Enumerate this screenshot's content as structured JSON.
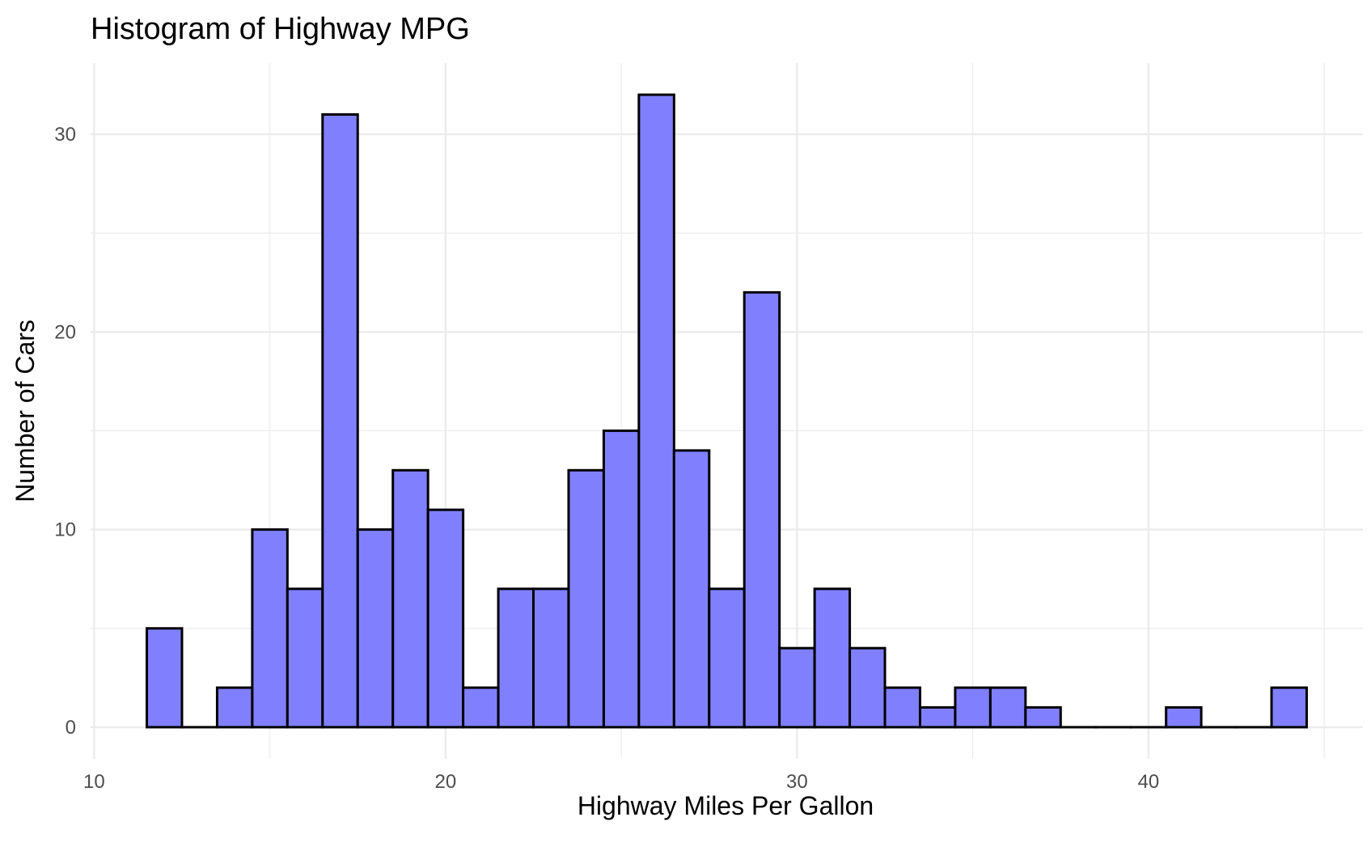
{
  "chart_data": {
    "type": "bar",
    "title": "Histogram of Highway MPG",
    "xlabel": "Highway Miles Per Gallon",
    "ylabel": "Number of Cars",
    "bin_width": 1,
    "bins": [
      {
        "center": 12,
        "count": 5
      },
      {
        "center": 13,
        "count": 0
      },
      {
        "center": 14,
        "count": 2
      },
      {
        "center": 15,
        "count": 10
      },
      {
        "center": 16,
        "count": 7
      },
      {
        "center": 17,
        "count": 31
      },
      {
        "center": 18,
        "count": 10
      },
      {
        "center": 19,
        "count": 13
      },
      {
        "center": 20,
        "count": 11
      },
      {
        "center": 21,
        "count": 2
      },
      {
        "center": 22,
        "count": 7
      },
      {
        "center": 23,
        "count": 7
      },
      {
        "center": 24,
        "count": 13
      },
      {
        "center": 25,
        "count": 15
      },
      {
        "center": 26,
        "count": 32
      },
      {
        "center": 27,
        "count": 14
      },
      {
        "center": 28,
        "count": 7
      },
      {
        "center": 29,
        "count": 22
      },
      {
        "center": 30,
        "count": 4
      },
      {
        "center": 31,
        "count": 7
      },
      {
        "center": 32,
        "count": 4
      },
      {
        "center": 33,
        "count": 2
      },
      {
        "center": 34,
        "count": 1
      },
      {
        "center": 35,
        "count": 2
      },
      {
        "center": 36,
        "count": 2
      },
      {
        "center": 37,
        "count": 1
      },
      {
        "center": 38,
        "count": 0
      },
      {
        "center": 39,
        "count": 0
      },
      {
        "center": 40,
        "count": 0
      },
      {
        "center": 41,
        "count": 1
      },
      {
        "center": 42,
        "count": 0
      },
      {
        "center": 43,
        "count": 0
      },
      {
        "center": 44,
        "count": 2
      }
    ],
    "xlim": [
      9.9,
      46.1
    ],
    "ylim": [
      -1.6,
      33.6
    ],
    "x_ticks": [
      10,
      20,
      30,
      40
    ],
    "y_ticks": [
      0,
      10,
      20,
      30
    ],
    "grid": true,
    "bar_fill": "#8080ff",
    "bar_outline": "#000000",
    "grid_color": "#ebebeb"
  }
}
